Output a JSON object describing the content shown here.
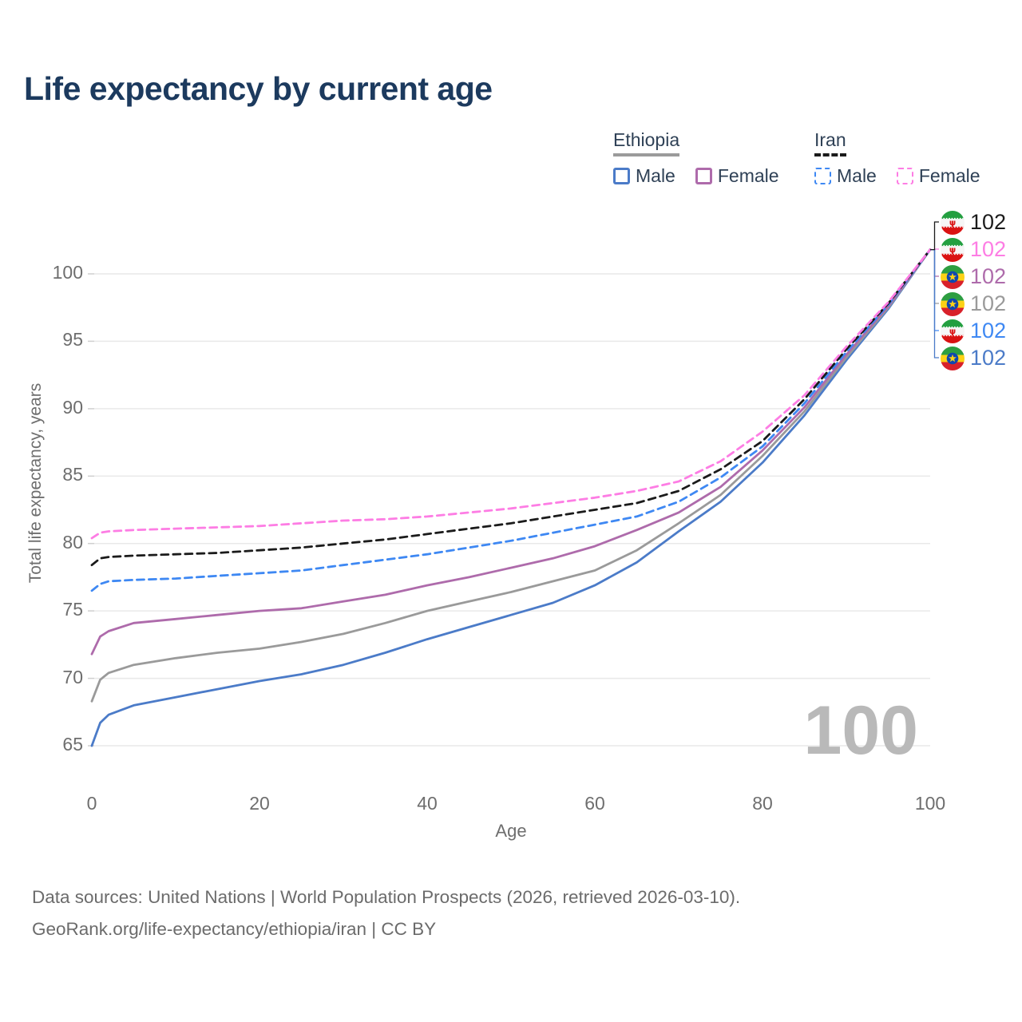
{
  "title": "Life expectancy by current age",
  "legend": {
    "groups": [
      {
        "country": "Ethiopia",
        "underline_style": "solid",
        "underline_color": "#9b9b9b",
        "items": [
          {
            "label": "Male",
            "color": "#4b7bc8"
          },
          {
            "label": "Female",
            "color": "#ae6bab"
          }
        ]
      },
      {
        "country": "Iran",
        "underline_style": "dashed",
        "underline_color": "#1b1b1b",
        "items": [
          {
            "label": "Male",
            "color": "#3e88f3"
          },
          {
            "label": "Female",
            "color": "#fd7de4"
          }
        ]
      }
    ]
  },
  "chart_data": {
    "type": "line",
    "title": "Life expectancy by current age",
    "xlabel": "Age",
    "ylabel": "Total life expectancy, years",
    "xlim": [
      0,
      100
    ],
    "ylim": [
      63,
      103
    ],
    "xticks": [
      0,
      20,
      40,
      60,
      80,
      100
    ],
    "yticks": [
      65,
      70,
      75,
      80,
      85,
      90,
      95,
      100
    ],
    "grid": "horizontal",
    "legend_position": "top-right",
    "x": [
      0,
      1,
      2,
      5,
      10,
      15,
      20,
      25,
      30,
      35,
      40,
      45,
      50,
      55,
      60,
      65,
      70,
      75,
      80,
      85,
      90,
      95,
      100
    ],
    "series": [
      {
        "name": "Ethiopia Male",
        "country": "Ethiopia",
        "sex": "Male",
        "color": "#4b7bc8",
        "dashed": false,
        "end_label": "102",
        "values": [
          65.0,
          66.7,
          67.3,
          68.0,
          68.6,
          69.2,
          69.8,
          70.3,
          71.0,
          71.9,
          72.9,
          73.8,
          74.7,
          75.6,
          76.9,
          78.6,
          80.9,
          83.1,
          86.0,
          89.5,
          93.6,
          97.4,
          101.8
        ]
      },
      {
        "name": "Ethiopia Both sexes",
        "country": "Ethiopia",
        "sex": "Both",
        "color": "#9a9a9a",
        "dashed": false,
        "end_label": "102",
        "values": [
          68.3,
          69.9,
          70.4,
          71.0,
          71.5,
          71.9,
          72.2,
          72.7,
          73.3,
          74.1,
          75.0,
          75.7,
          76.4,
          77.2,
          78.0,
          79.5,
          81.5,
          83.6,
          86.5,
          89.8,
          93.8,
          97.5,
          101.8
        ]
      },
      {
        "name": "Ethiopia Female",
        "country": "Ethiopia",
        "sex": "Female",
        "color": "#ae6bab",
        "dashed": false,
        "end_label": "102",
        "values": [
          71.8,
          73.1,
          73.5,
          74.1,
          74.4,
          74.7,
          75.0,
          75.2,
          75.7,
          76.2,
          76.9,
          77.5,
          78.2,
          78.9,
          79.8,
          81.0,
          82.3,
          84.2,
          86.9,
          90.1,
          94.0,
          97.6,
          101.8
        ]
      },
      {
        "name": "Iran Male",
        "country": "Iran",
        "sex": "Male",
        "color": "#3e88f3",
        "dashed": true,
        "end_label": "102",
        "values": [
          76.5,
          77.0,
          77.2,
          77.3,
          77.4,
          77.6,
          77.8,
          78.0,
          78.4,
          78.8,
          79.2,
          79.7,
          80.2,
          80.8,
          81.4,
          82.0,
          83.1,
          84.9,
          87.2,
          90.4,
          94.2,
          97.7,
          101.8
        ]
      },
      {
        "name": "Iran Both sexes",
        "country": "Iran",
        "sex": "Both",
        "color": "#1b1b1b",
        "dashed": true,
        "end_label": "102",
        "values": [
          78.4,
          78.9,
          79.0,
          79.1,
          79.2,
          79.3,
          79.5,
          79.7,
          80.0,
          80.3,
          80.7,
          81.1,
          81.5,
          82.0,
          82.5,
          83.0,
          83.9,
          85.5,
          87.6,
          90.7,
          94.4,
          97.8,
          101.8
        ]
      },
      {
        "name": "Iran Female",
        "country": "Iran",
        "sex": "Female",
        "color": "#fd7de4",
        "dashed": true,
        "end_label": "102",
        "values": [
          80.4,
          80.8,
          80.9,
          81.0,
          81.1,
          81.2,
          81.3,
          81.5,
          81.7,
          81.8,
          82.0,
          82.3,
          82.6,
          83.0,
          83.4,
          83.9,
          84.6,
          86.1,
          88.3,
          91.0,
          94.6,
          97.9,
          101.8
        ]
      }
    ],
    "end_labels": [
      {
        "series_index": 4,
        "flag": "iran",
        "label": "102"
      },
      {
        "series_index": 5,
        "flag": "iran",
        "label": "102"
      },
      {
        "series_index": 2,
        "flag": "ethiopia",
        "label": "102"
      },
      {
        "series_index": 1,
        "flag": "ethiopia",
        "label": "102"
      },
      {
        "series_index": 3,
        "flag": "iran",
        "label": "102"
      },
      {
        "series_index": 0,
        "flag": "ethiopia",
        "label": "102"
      }
    ],
    "watermark": "100"
  },
  "footer": {
    "line1": "Data sources: United Nations | World Population Prospects (2026, retrieved 2026-03-10).",
    "line2": "GeoRank.org/life-expectancy/ethiopia/iran | CC BY"
  }
}
